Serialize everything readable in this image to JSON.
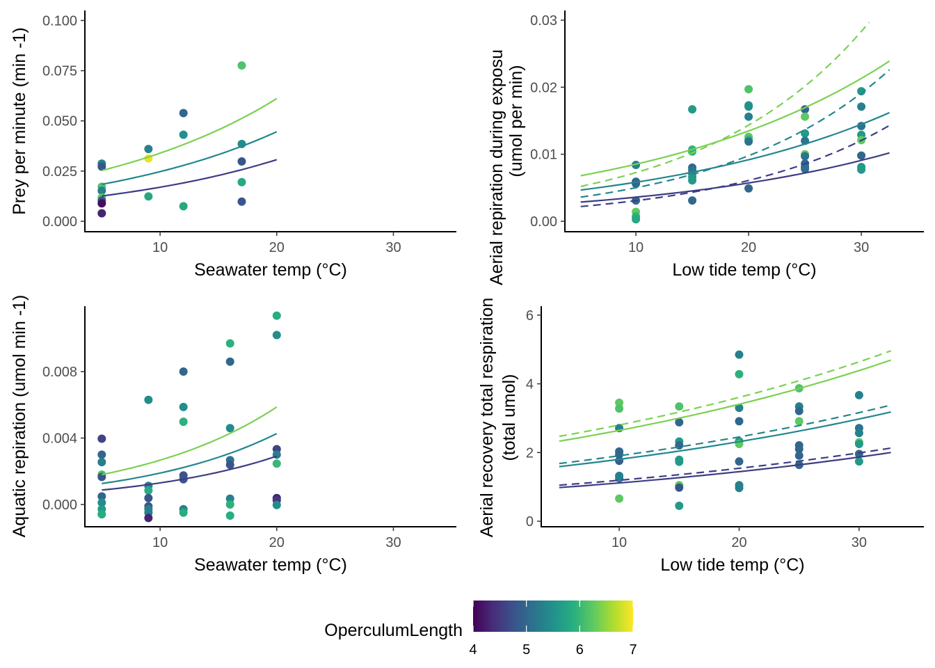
{
  "chart_data": [
    {
      "type": "scatter",
      "xlabel": "Seawater temp (°C)",
      "ylabel": [
        "Prey per minute (min -1)"
      ],
      "xlim": [
        3.55,
        35.4
      ],
      "ylim": [
        -0.0052,
        0.105
      ],
      "xticks": [
        10,
        20,
        30
      ],
      "xtick_labels": [
        "10",
        "20",
        "30"
      ],
      "yticks": [
        0,
        0.025,
        0.05,
        0.075,
        0.1
      ],
      "ytick_labels": [
        "0.000",
        "0.025",
        "0.050",
        "0.075",
        "0.100"
      ],
      "grid": false,
      "points": [
        [
          5,
          0.0287,
          5.3
        ],
        [
          5,
          0.0272,
          4.8
        ],
        [
          5,
          0.0172,
          6.15
        ],
        [
          5,
          0.0152,
          5.3
        ],
        [
          5,
          0.0118,
          6.25
        ],
        [
          5,
          0.0103,
          4.8
        ],
        [
          5,
          0.0089,
          4.1
        ],
        [
          5,
          0.004,
          4.3
        ],
        [
          9,
          0.036,
          5.3
        ],
        [
          9,
          0.0313,
          6.9
        ],
        [
          9,
          0.0124,
          5.8
        ],
        [
          12,
          0.0539,
          5.0
        ],
        [
          12,
          0.0431,
          5.5
        ],
        [
          12,
          0.0075,
          5.8
        ],
        [
          17,
          0.0776,
          6.15
        ],
        [
          17,
          0.0385,
          5.45
        ],
        [
          17,
          0.0298,
          4.8
        ],
        [
          17,
          0.0195,
          5.8
        ],
        [
          17,
          0.0098,
          4.8
        ]
      ],
      "lines": [
        {
          "color": "#7ad151",
          "dashed": false,
          "x": [
            5,
            20
          ],
          "y": [
            0.0253,
            0.0611
          ]
        },
        {
          "color": "#22868d",
          "dashed": false,
          "x": [
            5,
            20
          ],
          "y": [
            0.0184,
            0.0446
          ]
        },
        {
          "color": "#3e3c84",
          "dashed": false,
          "x": [
            5,
            20
          ],
          "y": [
            0.0126,
            0.0307
          ]
        }
      ]
    },
    {
      "type": "scatter",
      "xlabel": "Low tide temp (°C)",
      "ylabel": [
        "Aerial repiration during exposu",
        "(umol per min)"
      ],
      "xlim": [
        3.7,
        35.55
      ],
      "ylim": [
        -0.00156,
        0.03145
      ],
      "xticks": [
        10,
        20,
        30
      ],
      "xtick_labels": [
        "10",
        "20",
        "30"
      ],
      "yticks": [
        0,
        0.01,
        0.02,
        0.03
      ],
      "ytick_labels": [
        "0.00",
        "0.01",
        "0.02",
        "0.03"
      ],
      "grid": false,
      "points": [
        [
          10,
          0.0084,
          5.3
        ],
        [
          10,
          0.0059,
          5.0
        ],
        [
          10,
          0.0056,
          5.0
        ],
        [
          10,
          0.0031,
          5.0
        ],
        [
          10,
          0.0014,
          6.25
        ],
        [
          10,
          0.0007,
          5.9
        ],
        [
          10,
          0.0003,
          5.8
        ],
        [
          15,
          0.0167,
          5.6
        ],
        [
          15,
          0.0107,
          6.0
        ],
        [
          15,
          0.0104,
          5.9
        ],
        [
          15,
          0.008,
          5.0
        ],
        [
          15,
          0.0076,
          5.15
        ],
        [
          15,
          0.0071,
          5.2
        ],
        [
          15,
          0.0066,
          5.6
        ],
        [
          15,
          0.0061,
          5.6
        ],
        [
          15,
          0.0031,
          5.0
        ],
        [
          20,
          0.0197,
          6.15
        ],
        [
          20,
          0.0173,
          5.6
        ],
        [
          20,
          0.0171,
          5.5
        ],
        [
          20,
          0.0156,
          5.3
        ],
        [
          20,
          0.0126,
          6.25
        ],
        [
          20,
          0.0122,
          6.0
        ],
        [
          20,
          0.0119,
          5.15
        ],
        [
          20,
          0.0049,
          5.0
        ],
        [
          25,
          0.0167,
          5.0
        ],
        [
          25,
          0.0156,
          6.25
        ],
        [
          25,
          0.0131,
          5.6
        ],
        [
          25,
          0.012,
          5.15
        ],
        [
          25,
          0.01,
          6.3
        ],
        [
          25,
          0.0097,
          5.15
        ],
        [
          25,
          0.0086,
          5.0
        ],
        [
          25,
          0.0081,
          5.0
        ],
        [
          25,
          0.0078,
          5.1
        ],
        [
          30,
          0.0194,
          5.6
        ],
        [
          30,
          0.0171,
          5.3
        ],
        [
          30,
          0.0142,
          5.15
        ],
        [
          30,
          0.0129,
          5.6
        ],
        [
          30,
          0.0121,
          6.25
        ],
        [
          30,
          0.0098,
          5.0
        ],
        [
          30,
          0.0081,
          5.6
        ],
        [
          30,
          0.0077,
          5.6
        ]
      ],
      "lines": [
        {
          "color": "#7ad151",
          "dashed": false,
          "x": [
            5.1,
            32.5
          ],
          "y": [
            0.0068,
            0.0239
          ]
        },
        {
          "color": "#22868d",
          "dashed": false,
          "x": [
            5.1,
            32.5
          ],
          "y": [
            0.00466,
            0.0162
          ]
        },
        {
          "color": "#3e3c84",
          "dashed": false,
          "x": [
            5.1,
            32.5
          ],
          "y": [
            0.00286,
            0.0102
          ]
        },
        {
          "color": "#7ad151",
          "dashed": true,
          "x": [
            5.1,
            30.7
          ],
          "y": [
            0.0052,
            0.0297
          ]
        },
        {
          "color": "#22868d",
          "dashed": true,
          "x": [
            5.1,
            32.5
          ],
          "y": [
            0.0036,
            0.0226
          ]
        },
        {
          "color": "#3e3c84",
          "dashed": true,
          "x": [
            5.1,
            32.5
          ],
          "y": [
            0.0022,
            0.0143
          ]
        }
      ]
    },
    {
      "type": "scatter",
      "xlabel": "Seawater temp (°C)",
      "ylabel": [
        "Aquatic repiration (umol min -1)"
      ],
      "xlim": [
        3.55,
        35.4
      ],
      "ylim": [
        -0.00134,
        0.01194
      ],
      "xticks": [
        10,
        20,
        30
      ],
      "xtick_labels": [
        "10",
        "20",
        "30"
      ],
      "yticks": [
        0,
        0.004,
        0.008
      ],
      "ytick_labels": [
        "0.000",
        "0.004",
        "0.008"
      ],
      "grid": false,
      "points": [
        [
          5,
          0.00396,
          4.6
        ],
        [
          5,
          0.003,
          5.0
        ],
        [
          5,
          0.00255,
          5.3
        ],
        [
          5,
          0.0018,
          6.15
        ],
        [
          5,
          0.00166,
          4.8
        ],
        [
          5,
          0.00049,
          5.0
        ],
        [
          5,
          0.00011,
          5.45
        ],
        [
          5,
          -0.00028,
          5.6
        ],
        [
          5,
          -0.00059,
          5.85
        ],
        [
          9,
          0.0063,
          5.45
        ],
        [
          9,
          0.00112,
          5.3
        ],
        [
          9,
          0.00084,
          5.85
        ],
        [
          9,
          0.00039,
          4.8
        ],
        [
          9,
          -0.00011,
          4.8
        ],
        [
          9,
          -0.00028,
          5.3
        ],
        [
          9,
          -0.00049,
          5.3
        ],
        [
          9,
          -0.00081,
          4.3
        ],
        [
          12,
          0.008,
          5.0
        ],
        [
          12,
          0.00587,
          5.45
        ],
        [
          12,
          0.00498,
          5.9
        ],
        [
          12,
          0.00175,
          4.8
        ],
        [
          12,
          0.00152,
          4.8
        ],
        [
          12,
          -0.00028,
          5.3
        ],
        [
          12,
          -0.00049,
          5.85
        ],
        [
          16,
          0.0097,
          5.9
        ],
        [
          16,
          0.0086,
          5.0
        ],
        [
          16,
          0.0046,
          5.45
        ],
        [
          16,
          0.00267,
          5.15
        ],
        [
          16,
          0.00239,
          4.8
        ],
        [
          16,
          0.00035,
          5.3
        ],
        [
          16,
          0.0,
          5.9
        ],
        [
          16,
          -0.00067,
          5.85
        ],
        [
          20,
          0.01137,
          5.85
        ],
        [
          20,
          0.0102,
          5.45
        ],
        [
          20,
          0.00333,
          4.6
        ],
        [
          20,
          0.003,
          5.3
        ],
        [
          20,
          0.00246,
          6.0
        ],
        [
          20,
          0.00039,
          4.3
        ],
        [
          20,
          0.00025,
          4.5
        ],
        [
          20,
          -3e-05,
          5.45
        ]
      ],
      "lines": [
        {
          "color": "#7ad151",
          "dashed": false,
          "x": [
            5,
            20
          ],
          "y": [
            0.0018,
            0.00587
          ]
        },
        {
          "color": "#22868d",
          "dashed": false,
          "x": [
            5,
            20
          ],
          "y": [
            0.00126,
            0.00427
          ]
        },
        {
          "color": "#3e3c84",
          "dashed": false,
          "x": [
            5,
            20
          ],
          "y": [
            0.00087,
            0.00291
          ]
        }
      ]
    },
    {
      "type": "scatter",
      "xlabel": "Low tide temp (°C)",
      "ylabel": [
        "Aerial recovery total respiration",
        "(total umol)"
      ],
      "xlim": [
        3.5,
        35.4
      ],
      "ylim": [
        -0.16,
        6.26
      ],
      "xticks": [
        10,
        20,
        30
      ],
      "xtick_labels": [
        "10",
        "20",
        "30"
      ],
      "yticks": [
        0,
        2,
        4,
        6
      ],
      "ytick_labels": [
        "0",
        "2",
        "4",
        "6"
      ],
      "grid": false,
      "points": [
        [
          10,
          3.45,
          6.25
        ],
        [
          10,
          3.28,
          6.15
        ],
        [
          10,
          2.71,
          5.3
        ],
        [
          10,
          2.03,
          5.0
        ],
        [
          10,
          1.94,
          5.0
        ],
        [
          10,
          1.76,
          4.9
        ],
        [
          10,
          1.32,
          5.3
        ],
        [
          10,
          1.25,
          5.3
        ],
        [
          10,
          0.66,
          6.25
        ],
        [
          15,
          3.34,
          6.15
        ],
        [
          15,
          2.88,
          5.0
        ],
        [
          15,
          2.32,
          5.6
        ],
        [
          15,
          2.21,
          5.0
        ],
        [
          15,
          1.79,
          5.6
        ],
        [
          15,
          1.73,
          5.6
        ],
        [
          15,
          1.05,
          6.25
        ],
        [
          15,
          0.98,
          4.8
        ],
        [
          15,
          0.45,
          5.6
        ],
        [
          20,
          4.85,
          5.3
        ],
        [
          20,
          4.28,
          5.9
        ],
        [
          20,
          3.3,
          5.3
        ],
        [
          20,
          2.91,
          5.0
        ],
        [
          20,
          2.33,
          5.6
        ],
        [
          20,
          2.25,
          6.25
        ],
        [
          20,
          1.74,
          5.0
        ],
        [
          20,
          1.05,
          5.3
        ],
        [
          20,
          0.97,
          5.3
        ],
        [
          25,
          3.87,
          6.15
        ],
        [
          25,
          3.34,
          5.3
        ],
        [
          25,
          3.21,
          5.0
        ],
        [
          25,
          2.91,
          6.25
        ],
        [
          25,
          2.21,
          5.0
        ],
        [
          25,
          2.1,
          5.0
        ],
        [
          25,
          1.91,
          5.0
        ],
        [
          25,
          1.64,
          5.0
        ],
        [
          30,
          3.67,
          5.3
        ],
        [
          30,
          2.71,
          5.15
        ],
        [
          30,
          2.57,
          5.3
        ],
        [
          30,
          2.3,
          6.25
        ],
        [
          30,
          2.25,
          5.6
        ],
        [
          30,
          1.96,
          5.0
        ],
        [
          30,
          1.74,
          5.6
        ]
      ],
      "lines": [
        {
          "color": "#7ad151",
          "dashed": false,
          "x": [
            5,
            32.65
          ],
          "y": [
            2.33,
            4.69
          ]
        },
        {
          "color": "#7ad151",
          "dashed": true,
          "x": [
            5,
            32.65
          ],
          "y": [
            2.47,
            4.96
          ]
        },
        {
          "color": "#22868d",
          "dashed": false,
          "x": [
            5,
            32.65
          ],
          "y": [
            1.59,
            3.18
          ]
        },
        {
          "color": "#22868d",
          "dashed": true,
          "x": [
            5,
            32.65
          ],
          "y": [
            1.68,
            3.38
          ]
        },
        {
          "color": "#3e3c84",
          "dashed": false,
          "x": [
            5,
            32.65
          ],
          "y": [
            0.98,
            2.0
          ]
        },
        {
          "color": "#3e3c84",
          "dashed": true,
          "x": [
            5,
            32.65
          ],
          "y": [
            1.05,
            2.13
          ]
        }
      ]
    }
  ],
  "legend": {
    "title": "OperculumLength",
    "palette": "viridis",
    "range": [
      4,
      7
    ],
    "ticks": [
      4,
      5,
      6,
      7
    ],
    "tick_labels": [
      "4",
      "5",
      "6",
      "7"
    ],
    "placement": "bottom"
  }
}
